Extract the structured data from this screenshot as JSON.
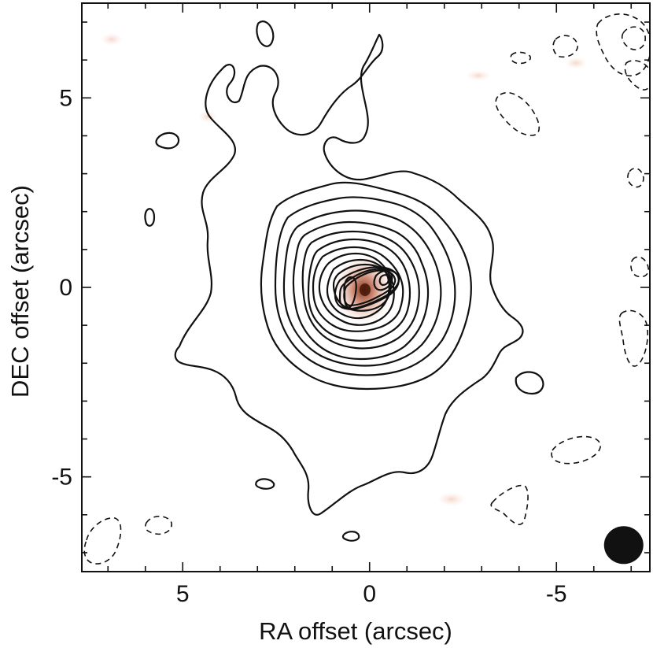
{
  "chart_data": {
    "type": "contour",
    "xlabel": "RA offset (arcsec)",
    "ylabel": "DEC offset (arcsec)",
    "xlim": [
      7.7,
      -7.5
    ],
    "ylim": [
      -7.5,
      7.5
    ],
    "x_ticks": [
      {
        "value": 5,
        "label": "5"
      },
      {
        "value": 0,
        "label": "0"
      },
      {
        "value": -5,
        "label": "-5"
      }
    ],
    "y_ticks": [
      {
        "value": 5,
        "label": "5"
      },
      {
        "value": 0,
        "label": "0"
      },
      {
        "value": -5,
        "label": "-5"
      }
    ],
    "x_minor_step": 1,
    "y_minor_step": 1,
    "grid": false,
    "source": {
      "x": 0.1,
      "y": 0.1
    },
    "beam": {
      "x": -6.8,
      "y": -6.8,
      "major": 1.05,
      "minor": 0.95
    },
    "positive_levels": 17,
    "negative_levels": 1,
    "colors": {
      "contour": "#111111",
      "emission": "#a0522d",
      "beam": "#111111"
    }
  }
}
